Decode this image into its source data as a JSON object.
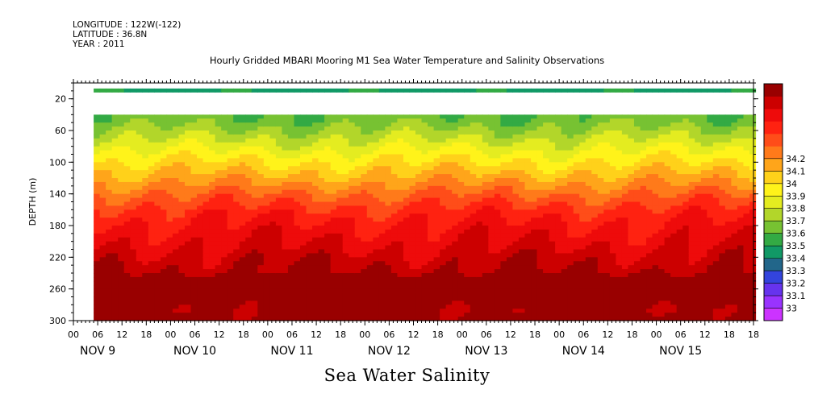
{
  "header": {
    "longitude": "LONGITUDE : 122W(-122)",
    "latitude": "LATITUDE : 36.8N",
    "year": "YEAR : 2011"
  },
  "chart_data": {
    "type": "heatmap",
    "title": "Hourly Gridded MBARI Mooring M1 Sea Water Temperature and Salinity Observations",
    "footer": "Sea Water Salinity",
    "ylabel": "DEPTH (m)",
    "xlabel": "",
    "y_range": [
      300,
      0
    ],
    "y_ticks": [
      20,
      60,
      100,
      140,
      180,
      220,
      260,
      300
    ],
    "x_range_hours": [
      0,
      168
    ],
    "x_hour_labels": [
      "00",
      "06",
      "12",
      "18",
      "00",
      "06",
      "12",
      "18",
      "00",
      "06",
      "12",
      "18",
      "00",
      "06",
      "12",
      "18",
      "00",
      "06",
      "12",
      "18",
      "00",
      "06",
      "12",
      "18",
      "00",
      "06",
      "12",
      "18",
      "18"
    ],
    "x_day_labels": [
      "NOV  9",
      "NOV 10",
      "NOV 11",
      "NOV 12",
      "NOV 13",
      "NOV 14",
      "NOV 15"
    ],
    "colorbar": {
      "levels": [
        33,
        33.1,
        33.2,
        33.3,
        33.4,
        33.5,
        33.6,
        33.7,
        33.8,
        33.9,
        34,
        34.1,
        34.2
      ],
      "labels": [
        "33",
        "33.1",
        "33.2",
        "33.3",
        "33.4",
        "33.5",
        "33.6",
        "33.7",
        "33.8",
        "33.9",
        "34",
        "34.1",
        "34.2"
      ],
      "colors": [
        "#cc33ff",
        "#9933ff",
        "#6633ee",
        "#3344dd",
        "#22668a",
        "#119966",
        "#33aa44",
        "#77c232",
        "#b2d62a",
        "#e4ec20",
        "#fff31a",
        "#ffd11a",
        "#ffa51a",
        "#ff7a1a",
        "#ff4d19",
        "#ff2211",
        "#ee0b0b",
        "#cc0000",
        "#990000"
      ]
    },
    "data_start_hour": 5,
    "depth_profile": [
      {
        "depth": 10,
        "salinity": 33.32
      },
      {
        "depth": 40,
        "salinity": 33.43
      },
      {
        "depth": 60,
        "salinity": 33.52
      },
      {
        "depth": 80,
        "salinity": 33.62
      },
      {
        "depth": 100,
        "salinity": 33.72
      },
      {
        "depth": 120,
        "salinity": 33.82
      },
      {
        "depth": 140,
        "salinity": 33.93
      },
      {
        "depth": 160,
        "salinity": 34.02
      },
      {
        "depth": 180,
        "salinity": 34.08
      },
      {
        "depth": 200,
        "salinity": 34.12
      },
      {
        "depth": 220,
        "salinity": 34.17
      },
      {
        "depth": 240,
        "salinity": 34.21
      },
      {
        "depth": 250,
        "salinity": 34.26
      },
      {
        "depth": 260,
        "salinity": 34.27
      },
      {
        "depth": 270,
        "salinity": 34.22
      },
      {
        "depth": 285,
        "salinity": 34.21
      },
      {
        "depth": 300,
        "salinity": 34.22
      }
    ],
    "top_band": {
      "depth_min": 7,
      "depth_max": 12,
      "salinity": 33.33
    },
    "missing_band": {
      "depth_min": 12,
      "depth_max": 40
    }
  }
}
